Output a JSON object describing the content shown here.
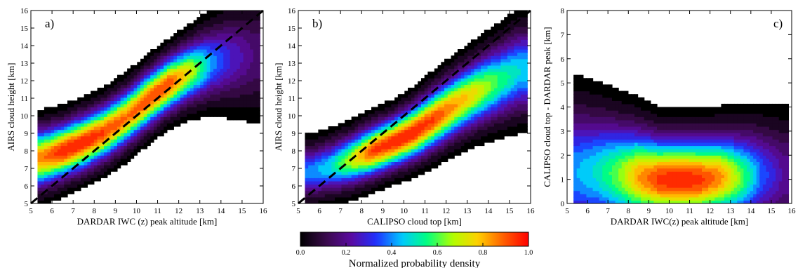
{
  "chart_data": [
    {
      "type": "heatmap",
      "panel_label": "a)",
      "xlabel": "DARDAR IWC (z) peak altitude [km]",
      "ylabel": "AIRS cloud height [km]",
      "xlim": [
        5,
        16
      ],
      "ylim": [
        5,
        16
      ],
      "x_ticks": [
        5,
        6,
        7,
        8,
        9,
        10,
        11,
        12,
        13,
        14,
        15,
        16
      ],
      "y_ticks": [
        5,
        6,
        7,
        8,
        9,
        10,
        11,
        12,
        13,
        14,
        15,
        16
      ],
      "one_to_one_line": true,
      "density_ridge": [
        {
          "x": 5.5,
          "y": 7.6,
          "peak": 0.88,
          "spread": 1.5
        },
        {
          "x": 6.5,
          "y": 8.0,
          "peak": 1.0,
          "spread": 1.4
        },
        {
          "x": 7.5,
          "y": 8.5,
          "peak": 1.0,
          "spread": 1.4
        },
        {
          "x": 8.5,
          "y": 9.1,
          "peak": 0.95,
          "spread": 1.4
        },
        {
          "x": 9.5,
          "y": 9.9,
          "peak": 0.9,
          "spread": 1.4
        },
        {
          "x": 10.5,
          "y": 10.9,
          "peak": 0.95,
          "spread": 1.4
        },
        {
          "x": 11.5,
          "y": 11.8,
          "peak": 0.95,
          "spread": 1.4
        },
        {
          "x": 12.5,
          "y": 12.5,
          "peak": 0.75,
          "spread": 1.5
        },
        {
          "x": 13.5,
          "y": 13.0,
          "peak": 0.45,
          "spread": 1.8
        },
        {
          "x": 14.5,
          "y": 13.3,
          "peak": 0.3,
          "spread": 2.2
        },
        {
          "x": 15.5,
          "y": 13.4,
          "peak": 0.2,
          "spread": 2.6
        }
      ]
    },
    {
      "type": "heatmap",
      "panel_label": "b)",
      "xlabel": "CALIPSO cloud top [km]",
      "ylabel": "AIRS cloud height [km]",
      "xlim": [
        5,
        16
      ],
      "ylim": [
        5,
        16
      ],
      "x_ticks": [
        5,
        6,
        7,
        8,
        9,
        10,
        11,
        12,
        13,
        14,
        15,
        16
      ],
      "y_ticks": [
        5,
        6,
        7,
        8,
        9,
        10,
        11,
        12,
        13,
        14,
        15,
        16
      ],
      "one_to_one_line": true,
      "density_ridge": [
        {
          "x": 5.5,
          "y": 6.8,
          "peak": 0.42,
          "spread": 1.3
        },
        {
          "x": 6.5,
          "y": 7.1,
          "peak": 0.5,
          "spread": 1.3
        },
        {
          "x": 7.5,
          "y": 7.5,
          "peak": 0.72,
          "spread": 1.3
        },
        {
          "x": 8.5,
          "y": 8.0,
          "peak": 0.95,
          "spread": 1.3
        },
        {
          "x": 9.5,
          "y": 8.5,
          "peak": 1.0,
          "spread": 1.3
        },
        {
          "x": 10.5,
          "y": 9.1,
          "peak": 1.0,
          "spread": 1.4
        },
        {
          "x": 11.5,
          "y": 9.9,
          "peak": 0.95,
          "spread": 1.5
        },
        {
          "x": 12.5,
          "y": 10.7,
          "peak": 0.85,
          "spread": 1.6
        },
        {
          "x": 13.5,
          "y": 11.4,
          "peak": 0.75,
          "spread": 1.7
        },
        {
          "x": 14.5,
          "y": 12.0,
          "peak": 0.6,
          "spread": 1.9
        },
        {
          "x": 15.5,
          "y": 12.6,
          "peak": 0.5,
          "spread": 2.1
        }
      ]
    },
    {
      "type": "heatmap",
      "panel_label": "c)",
      "xlabel": "DARDAR IWC(z) peak altitude [km]",
      "ylabel": "CALIPSO cloud top - DARDAR peak [km]",
      "xlim": [
        5,
        16
      ],
      "ylim": [
        0,
        8
      ],
      "x_ticks": [
        5,
        6,
        7,
        8,
        9,
        10,
        11,
        12,
        13,
        14,
        15,
        16
      ],
      "y_ticks": [
        0,
        1,
        2,
        3,
        4,
        5,
        6,
        7,
        8
      ],
      "one_to_one_line": false,
      "density_ridge": [
        {
          "x": 5.5,
          "y": 1.3,
          "peak": 0.45,
          "spread": 2.4
        },
        {
          "x": 6.5,
          "y": 1.3,
          "peak": 0.52,
          "spread": 2.2
        },
        {
          "x": 7.5,
          "y": 1.2,
          "peak": 0.65,
          "spread": 2.0
        },
        {
          "x": 8.5,
          "y": 1.1,
          "peak": 0.85,
          "spread": 1.8
        },
        {
          "x": 9.5,
          "y": 1.0,
          "peak": 0.97,
          "spread": 1.6
        },
        {
          "x": 10.5,
          "y": 1.0,
          "peak": 1.0,
          "spread": 1.6
        },
        {
          "x": 11.5,
          "y": 1.0,
          "peak": 0.97,
          "spread": 1.6
        },
        {
          "x": 12.5,
          "y": 1.1,
          "peak": 0.88,
          "spread": 1.6
        },
        {
          "x": 13.5,
          "y": 1.1,
          "peak": 0.65,
          "spread": 1.7
        },
        {
          "x": 14.5,
          "y": 1.2,
          "peak": 0.4,
          "spread": 1.8
        },
        {
          "x": 15.5,
          "y": 1.2,
          "peak": 0.25,
          "spread": 1.9
        }
      ]
    }
  ],
  "colorbar": {
    "label": "Normalized probability density",
    "ticks": [
      "0.0",
      "0.2",
      "0.4",
      "0.6",
      "0.8",
      "1.0"
    ],
    "range": [
      0,
      1
    ],
    "colormap": [
      "#000000",
      "#3a0a4a",
      "#5a0aa0",
      "#2030ff",
      "#00c8ff",
      "#00ff80",
      "#b0ff00",
      "#ffd000",
      "#ff6000",
      "#ff0000"
    ]
  }
}
